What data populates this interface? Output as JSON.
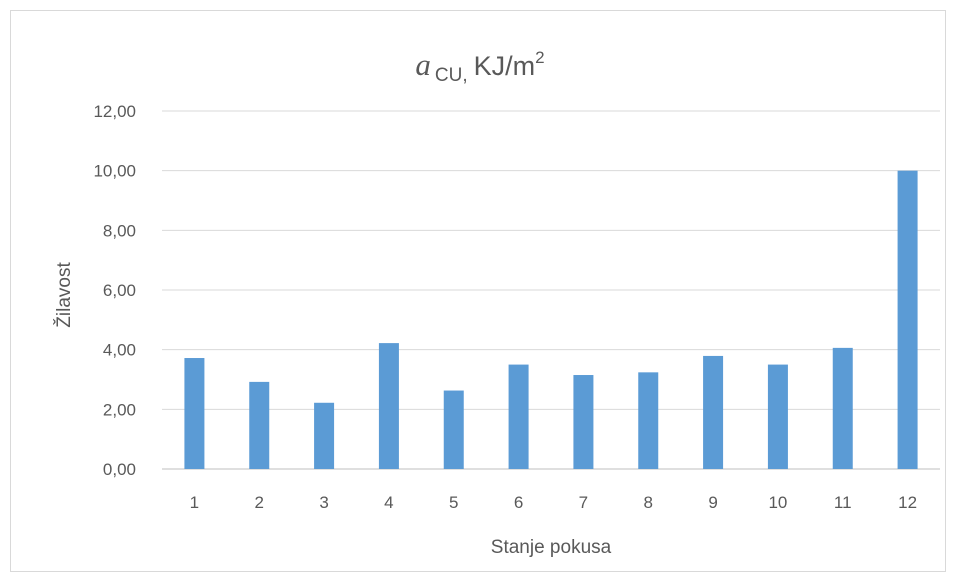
{
  "chart_data": {
    "type": "bar",
    "title": {
      "symbol": "a",
      "subscript": "CU,",
      "unit": "KJ/m",
      "superscript": "2"
    },
    "xlabel": "Stanje pokusa",
    "ylabel": "Žilavost",
    "categories": [
      "1",
      "2",
      "3",
      "4",
      "5",
      "6",
      "7",
      "8",
      "9",
      "10",
      "11",
      "12"
    ],
    "values": [
      3.72,
      2.92,
      2.22,
      4.22,
      2.63,
      3.5,
      3.15,
      3.24,
      3.79,
      3.5,
      4.06,
      10.0
    ],
    "ylim": [
      0,
      12
    ],
    "yticks": [
      "0,00",
      "2,00",
      "4,00",
      "6,00",
      "8,00",
      "10,00",
      "12,00"
    ],
    "grid": true,
    "legend": "none",
    "bar_color": "#5b9bd5",
    "grid_color": "#d9d9d9"
  }
}
